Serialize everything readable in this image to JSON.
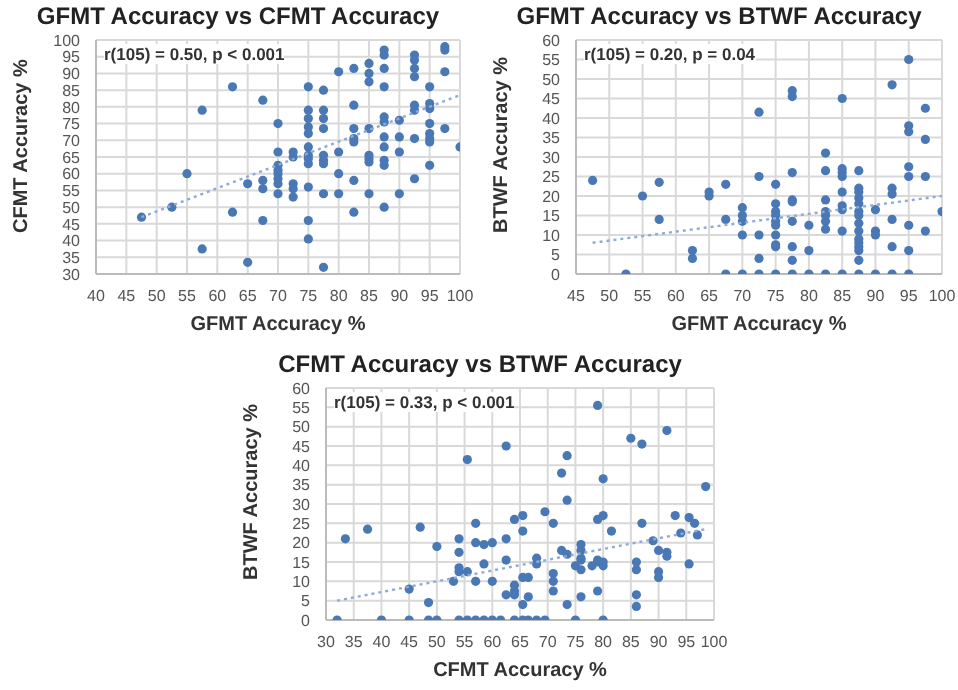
{
  "chart_data": [
    {
      "type": "scatter",
      "title": "GFMT Accuracy vs CFMT Accuracy",
      "xlabel": "GFMT Accuracy %",
      "ylabel": "CFMT Accuracy %",
      "annotations": [
        "r(105) = 0.50, p < 0.001"
      ],
      "xlim": [
        40,
        100
      ],
      "xticks": [
        40,
        45,
        50,
        55,
        60,
        65,
        70,
        75,
        80,
        85,
        90,
        95,
        100
      ],
      "ylim": [
        30,
        100
      ],
      "yticks": [
        30,
        35,
        40,
        45,
        50,
        55,
        60,
        65,
        70,
        75,
        80,
        85,
        90,
        95,
        100
      ],
      "grid": true,
      "marker": "circle",
      "legend": false,
      "series": [
        {
          "color": "#4a78b5",
          "x": [
            47.5,
            52.5,
            55,
            57.5,
            57.5,
            62.5,
            62.5,
            65,
            65,
            67.5,
            67.5,
            67.5,
            67.5,
            70,
            70,
            70,
            70,
            70,
            70,
            70,
            70,
            72.5,
            72.5,
            72.5,
            72.5,
            72.5,
            75,
            75,
            75,
            75,
            75,
            75,
            75,
            75,
            75,
            75,
            75,
            75,
            77.5,
            77.5,
            77.5,
            77.5,
            77.5,
            77.5,
            77.5,
            77.5,
            77.5,
            80,
            80,
            80,
            80,
            82.5,
            82.5,
            82.5,
            82.5,
            82.5,
            82.5,
            82.5,
            85,
            85,
            85,
            85,
            85,
            85,
            85,
            85,
            87.5,
            87.5,
            87.5,
            87.5,
            87.5,
            87.5,
            87.5,
            87.5,
            87.5,
            87.5,
            87.5,
            90,
            90,
            90,
            90,
            92.5,
            92.5,
            92.5,
            92.5,
            92.5,
            92.5,
            92.5,
            92.5,
            95,
            95,
            95,
            95,
            95,
            95,
            95,
            95,
            97.5,
            97.5,
            97.5,
            97.5,
            100
          ],
          "values": [
            47,
            50,
            60,
            79,
            37.5,
            86,
            48.5,
            57,
            33.5,
            82,
            58,
            55.5,
            46,
            75,
            66.5,
            62.5,
            61,
            60,
            58.5,
            57,
            54,
            66.5,
            65,
            57,
            55.5,
            53,
            86,
            79,
            76.5,
            74,
            72,
            68,
            65.5,
            64.5,
            63,
            56,
            46,
            40.5,
            85,
            79,
            76.5,
            73.5,
            65.5,
            64,
            63,
            54,
            32,
            90.5,
            66.5,
            60,
            54,
            91.5,
            80.5,
            73.5,
            70.5,
            69.5,
            58,
            48.5,
            93,
            90,
            87.5,
            73.5,
            65.5,
            64.5,
            63.5,
            54,
            97,
            95.5,
            91.5,
            86,
            77,
            75.5,
            71,
            68,
            64,
            62.5,
            50,
            76,
            71,
            66.5,
            54,
            95.5,
            94,
            91.5,
            89,
            80.5,
            79,
            70.5,
            58.5,
            86,
            81,
            79.5,
            75,
            72,
            70.5,
            69.5,
            62.5,
            98,
            97,
            90.5,
            73.5,
            68
          ]
        },
        {
          "type": "line",
          "color": "#8eaad6",
          "line_style": "dotted",
          "marker": "none",
          "x": [
            47.5,
            100
          ],
          "values": [
            47,
            83.5
          ]
        }
      ]
    },
    {
      "type": "scatter",
      "title": "GFMT Accuracy vs BTWF Accuracy",
      "xlabel": "GFMT Accuracy %",
      "ylabel": "BTWF Accuracy %",
      "annotations": [
        "r(105) = 0.20, p = 0.04"
      ],
      "xlim": [
        45,
        100
      ],
      "xticks": [
        45,
        50,
        55,
        60,
        65,
        70,
        75,
        80,
        85,
        90,
        95,
        100
      ],
      "ylim": [
        0,
        60
      ],
      "yticks": [
        0,
        5,
        10,
        15,
        20,
        25,
        30,
        35,
        40,
        45,
        50,
        55,
        60
      ],
      "grid": true,
      "marker": "circle",
      "legend": false,
      "series": [
        {
          "color": "#4a78b5",
          "x": [
            47.5,
            52.5,
            55,
            57.5,
            57.5,
            62.5,
            62.5,
            65,
            65,
            67.5,
            67.5,
            67.5,
            70,
            70,
            70,
            70,
            70,
            72.5,
            72.5,
            72.5,
            72.5,
            72.5,
            75,
            75,
            75,
            75,
            75,
            75,
            75,
            75,
            75,
            75,
            77.5,
            77.5,
            77.5,
            77.5,
            77.5,
            77.5,
            77.5,
            77.5,
            77.5,
            80,
            80,
            80,
            82.5,
            82.5,
            82.5,
            82.5,
            82.5,
            82.5,
            82.5,
            82.5,
            85,
            85,
            85,
            85,
            85,
            85,
            85,
            85,
            85,
            87.5,
            87.5,
            87.5,
            87.5,
            87.5,
            87.5,
            87.5,
            87.5,
            87.5,
            87.5,
            87.5,
            87.5,
            87.5,
            87.5,
            87.5,
            90,
            90,
            90,
            90,
            92.5,
            92.5,
            92.5,
            92.5,
            92.5,
            92.5,
            95,
            95,
            95,
            95,
            95,
            95,
            95,
            95,
            97.5,
            97.5,
            97.5,
            97.5,
            100
          ],
          "values": [
            24,
            0,
            20,
            23.5,
            14,
            6,
            4,
            21,
            20,
            23,
            14,
            0,
            17,
            15,
            13.5,
            10,
            0,
            41.5,
            25,
            10,
            4,
            0,
            23,
            18,
            16,
            15,
            13.5,
            12.5,
            10,
            7.5,
            7,
            0,
            47,
            45.5,
            26,
            19,
            18.5,
            13.5,
            7,
            3.5,
            0,
            12.5,
            6,
            0,
            31,
            26.5,
            19,
            16,
            15,
            13.5,
            11.5,
            0,
            45,
            27,
            26,
            25,
            21,
            17.5,
            16.5,
            11,
            0,
            26.5,
            22,
            21,
            19.5,
            18,
            16,
            15,
            13,
            11,
            9,
            8,
            7,
            6,
            3.5,
            0,
            16.5,
            11,
            10,
            0,
            48.5,
            22,
            20.5,
            14,
            7,
            0,
            55,
            38,
            36.5,
            27.5,
            25,
            12.5,
            6,
            0,
            42.5,
            34.5,
            25,
            11,
            16
          ]
        },
        {
          "type": "line",
          "color": "#8eaad6",
          "line_style": "dotted",
          "marker": "none",
          "x": [
            47.5,
            100
          ],
          "values": [
            8,
            20
          ]
        }
      ]
    },
    {
      "type": "scatter",
      "title": "CFMT Accuracy vs BTWF Accuracy",
      "xlabel": "CFMT Accuracy %",
      "ylabel": "BTWF Accuracy %",
      "annotations": [
        "r(105) = 0.33, p < 0.001"
      ],
      "xlim": [
        30,
        100
      ],
      "xticks": [
        30,
        35,
        40,
        45,
        50,
        55,
        60,
        65,
        70,
        75,
        80,
        85,
        90,
        95,
        100
      ],
      "ylim": [
        0,
        60
      ],
      "yticks": [
        0,
        5,
        10,
        15,
        20,
        25,
        30,
        35,
        40,
        45,
        50,
        55,
        60
      ],
      "grid": true,
      "marker": "circle",
      "legend": false,
      "series": [
        {
          "color": "#4a78b5",
          "x": [
            32,
            33.5,
            37.5,
            40,
            45,
            45,
            47,
            48.5,
            48.5,
            50,
            50,
            53,
            54,
            54,
            54,
            54,
            54,
            55.5,
            55.5,
            55.5,
            57,
            57,
            57,
            57,
            58.5,
            58.5,
            58.5,
            60,
            60,
            60,
            61.5,
            62.5,
            62.5,
            62.5,
            62.5,
            64,
            64,
            64,
            64,
            64,
            65.5,
            65.5,
            65.5,
            65.5,
            65.5,
            66.5,
            66.5,
            66.5,
            68,
            68,
            68,
            69.5,
            69.5,
            71,
            71,
            71,
            71,
            72.5,
            72.5,
            73.5,
            73.5,
            73.5,
            73.5,
            75,
            75,
            76,
            76,
            76,
            76,
            76,
            76,
            78,
            79,
            79,
            79,
            79,
            79,
            80,
            80,
            80,
            80,
            80,
            81.5,
            85,
            86,
            86,
            86,
            86,
            87,
            87,
            89,
            90,
            90,
            90,
            91.5,
            91.5,
            91.5,
            93,
            94,
            95.5,
            95.5,
            96.5,
            97,
            98.5
          ],
          "values": [
            0,
            21,
            23.5,
            0,
            8,
            0,
            24,
            4.5,
            0,
            19,
            0,
            10,
            21,
            17.5,
            13.5,
            12.5,
            0,
            41.5,
            12.5,
            0,
            25,
            20,
            10,
            0,
            19.5,
            14.5,
            0,
            20,
            10,
            0,
            0,
            45,
            21,
            15.5,
            6.5,
            26,
            9,
            7.5,
            6.5,
            0,
            27,
            23,
            11,
            4,
            0,
            11,
            6,
            0,
            16,
            14.5,
            0,
            28,
            0,
            25,
            12,
            10,
            7.5,
            38,
            18,
            42.5,
            31,
            17,
            4,
            14,
            0,
            19.5,
            18,
            16,
            15.5,
            13,
            6,
            14,
            55.5,
            26,
            15.5,
            15,
            7.5,
            36.5,
            27,
            15,
            14,
            0,
            23,
            47,
            15,
            13,
            6.5,
            3.5,
            45.5,
            25,
            20.5,
            18,
            12.5,
            11,
            49,
            17.5,
            16.5,
            27,
            22.5,
            26.5,
            14.5,
            25,
            22,
            34.5
          ]
        },
        {
          "type": "line",
          "color": "#8eaad6",
          "line_style": "dotted",
          "marker": "none",
          "x": [
            32,
            98.5
          ],
          "values": [
            5,
            23.5
          ]
        }
      ]
    }
  ]
}
